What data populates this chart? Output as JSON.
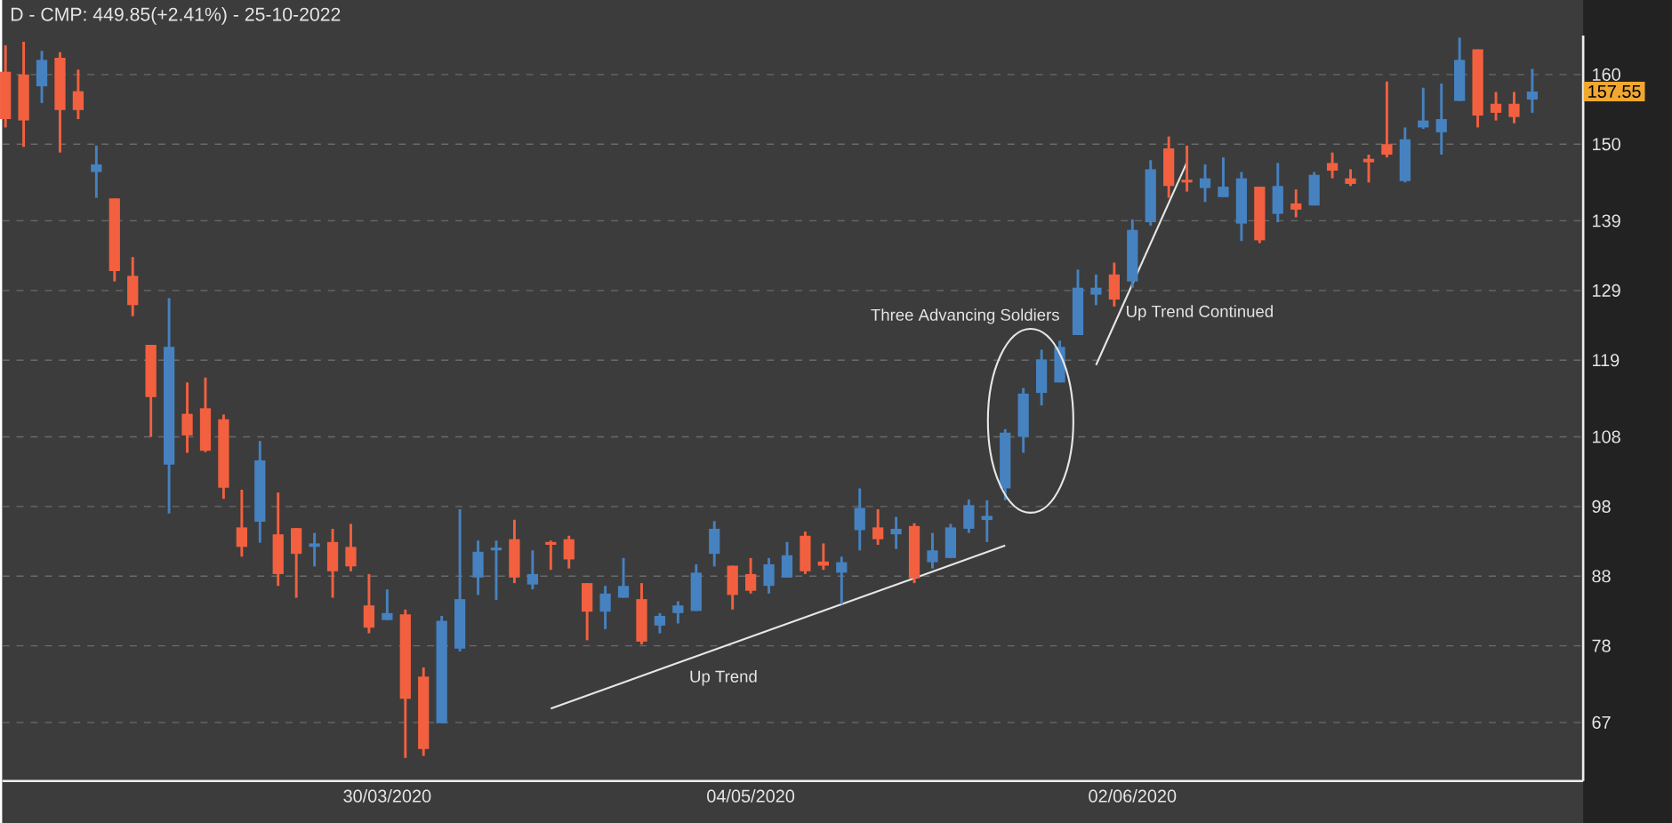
{
  "chart_data": {
    "type": "candlestick",
    "title": "D - CMP: 449.85(+2.41%) - 25-10-2022",
    "categories": [
      null,
      null,
      null,
      null,
      null,
      null,
      null,
      null,
      null,
      null,
      null,
      null,
      null,
      null,
      null,
      null,
      null,
      null,
      null,
      null,
      null,
      "30/03/2020",
      null,
      null,
      null,
      null,
      null,
      null,
      null,
      null,
      null,
      null,
      null,
      null,
      null,
      null,
      null,
      null,
      null,
      null,
      null,
      "04/05/2020",
      null,
      null,
      null,
      null,
      null,
      null,
      null,
      null,
      null,
      null,
      null,
      null,
      null,
      null,
      null,
      null,
      null,
      null,
      null,
      null,
      "02/06/2020",
      null,
      null,
      null,
      null,
      null,
      null,
      null,
      null,
      null,
      null,
      null,
      null,
      null,
      null,
      null,
      null,
      null,
      null,
      null,
      null,
      null,
      null
    ],
    "ohlc": [
      [
        160.4,
        164.2,
        152.4,
        153.6
      ],
      [
        160.0,
        164.7,
        149.6,
        153.4
      ],
      [
        158.3,
        163.4,
        155.9,
        162.1
      ],
      [
        162.4,
        163.2,
        148.8,
        154.9
      ],
      [
        157.6,
        160.7,
        153.6,
        154.9
      ],
      [
        146.0,
        149.8,
        142.3,
        147.1
      ],
      [
        142.2,
        142.2,
        130.3,
        131.8
      ],
      [
        131.1,
        133.8,
        125.3,
        126.9
      ],
      [
        121.2,
        121.2,
        108.0,
        113.7
      ],
      [
        104.0,
        127.9,
        97.0,
        120.9
      ],
      [
        111.3,
        115.8,
        105.7,
        108.2
      ],
      [
        112.1,
        116.5,
        105.8,
        106.0
      ],
      [
        110.5,
        111.2,
        99.1,
        100.7
      ],
      [
        95.0,
        100.4,
        90.8,
        92.2
      ],
      [
        95.8,
        107.4,
        92.8,
        104.6
      ],
      [
        94.0,
        100.0,
        86.6,
        88.3
      ],
      [
        94.9,
        94.9,
        84.9,
        91.2
      ],
      [
        92.2,
        94.2,
        89.4,
        92.7
      ],
      [
        92.9,
        94.8,
        84.9,
        88.7
      ],
      [
        92.2,
        95.5,
        88.7,
        89.4
      ],
      [
        83.8,
        88.3,
        79.8,
        80.6
      ],
      [
        81.7,
        86.1,
        81.7,
        82.7
      ],
      [
        82.5,
        83.2,
        61.9,
        70.4
      ],
      [
        73.6,
        74.9,
        62.2,
        63.2
      ],
      [
        66.9,
        82.3,
        66.9,
        81.6
      ],
      [
        77.6,
        97.6,
        77.2,
        84.7
      ],
      [
        87.8,
        93.1,
        85.3,
        91.5
      ],
      [
        91.7,
        93.1,
        84.6,
        92.1
      ],
      [
        93.3,
        96.1,
        87.0,
        87.8
      ],
      [
        86.8,
        91.7,
        86.1,
        88.3
      ],
      [
        92.9,
        93.1,
        88.9,
        92.5
      ],
      [
        93.3,
        93.8,
        89.1,
        90.4
      ],
      [
        87.0,
        87.0,
        78.8,
        82.9
      ],
      [
        82.9,
        86.6,
        80.4,
        85.5
      ],
      [
        84.9,
        90.6,
        84.9,
        86.6
      ],
      [
        84.7,
        87.0,
        78.2,
        78.6
      ],
      [
        80.9,
        82.7,
        79.8,
        82.3
      ],
      [
        82.7,
        84.4,
        81.2,
        83.8
      ],
      [
        83.0,
        89.7,
        83.0,
        88.5
      ],
      [
        91.2,
        95.9,
        89.4,
        94.8
      ],
      [
        89.5,
        89.5,
        83.2,
        85.3
      ],
      [
        88.3,
        90.6,
        85.5,
        85.9
      ],
      [
        86.6,
        90.6,
        85.5,
        89.7
      ],
      [
        87.8,
        92.9,
        87.8,
        91.0
      ],
      [
        93.8,
        94.4,
        88.3,
        88.7
      ],
      [
        90.1,
        92.7,
        88.9,
        89.5
      ],
      [
        88.5,
        90.8,
        84.0,
        90.0
      ],
      [
        94.6,
        100.6,
        91.7,
        97.8
      ],
      [
        95.0,
        97.6,
        92.5,
        93.3
      ],
      [
        94.0,
        96.5,
        91.9,
        94.8
      ],
      [
        95.2,
        95.6,
        87.0,
        87.7
      ],
      [
        90.0,
        94.2,
        89.1,
        91.7
      ],
      [
        90.6,
        95.5,
        90.6,
        95.0
      ],
      [
        94.8,
        99.0,
        94.2,
        98.2
      ],
      [
        96.2,
        98.9,
        92.9,
        96.5
      ],
      [
        100.6,
        109.1,
        98.9,
        108.6
      ],
      [
        108.0,
        115.0,
        105.7,
        114.2
      ],
      [
        114.3,
        120.5,
        112.5,
        119.1
      ],
      [
        115.8,
        121.8,
        115.8,
        120.9
      ],
      [
        122.6,
        132.0,
        122.6,
        129.4
      ],
      [
        128.4,
        131.3,
        126.9,
        129.4
      ],
      [
        131.3,
        133.0,
        126.7,
        127.7
      ],
      [
        130.3,
        139.2,
        129.4,
        137.7
      ],
      [
        138.8,
        147.7,
        138.3,
        146.4
      ],
      [
        149.4,
        151.1,
        142.3,
        144.0
      ],
      [
        144.9,
        149.8,
        143.2,
        144.5
      ],
      [
        143.7,
        147.1,
        141.7,
        145.1
      ],
      [
        142.4,
        148.1,
        142.4,
        143.9
      ],
      [
        138.6,
        146.0,
        136.1,
        145.1
      ],
      [
        143.9,
        143.9,
        135.8,
        136.2
      ],
      [
        140.0,
        147.3,
        138.8,
        144.0
      ],
      [
        141.5,
        143.5,
        139.5,
        140.6
      ],
      [
        141.2,
        146.0,
        141.2,
        145.6
      ],
      [
        147.3,
        148.8,
        145.1,
        146.2
      ],
      [
        145.1,
        146.4,
        144.0,
        144.3
      ],
      [
        147.9,
        148.5,
        144.5,
        147.4
      ],
      [
        150.0,
        159.0,
        148.1,
        148.5
      ],
      [
        144.7,
        152.4,
        144.5,
        150.7
      ],
      [
        152.4,
        158.1,
        152.2,
        153.4
      ],
      [
        151.7,
        158.7,
        148.5,
        153.6
      ],
      [
        156.2,
        165.3,
        156.2,
        162.1
      ],
      [
        163.6,
        163.6,
        152.4,
        154.1
      ],
      [
        155.8,
        157.5,
        153.4,
        154.5
      ],
      [
        155.8,
        157.5,
        153.0,
        153.9
      ],
      [
        156.4,
        160.8,
        154.5,
        157.55
      ]
    ],
    "colors": [
      "#f3603f",
      "#f3603f",
      "#4682c0",
      "#f3603f",
      "#f3603f",
      "#4682c0",
      "#f3603f",
      "#f3603f",
      "#f3603f",
      "#4682c0",
      "#f3603f",
      "#f3603f",
      "#f3603f",
      "#f3603f",
      "#4682c0",
      "#f3603f",
      "#f3603f",
      "#4682c0",
      "#f3603f",
      "#f3603f",
      "#f3603f",
      "#4682c0",
      "#f3603f",
      "#f3603f",
      "#4682c0",
      "#4682c0",
      "#4682c0",
      "#4682c0",
      "#f3603f",
      "#4682c0",
      "#f3603f",
      "#f3603f",
      "#f3603f",
      "#4682c0",
      "#4682c0",
      "#f3603f",
      "#4682c0",
      "#4682c0",
      "#4682c0",
      "#4682c0",
      "#f3603f",
      "#f3603f",
      "#4682c0",
      "#4682c0",
      "#f3603f",
      "#f3603f",
      "#4682c0",
      "#4682c0",
      "#f3603f",
      "#4682c0",
      "#f3603f",
      "#4682c0",
      "#4682c0",
      "#4682c0",
      "#4682c0",
      "#4682c0",
      "#4682c0",
      "#4682c0",
      "#4682c0",
      "#4682c0",
      "#4682c0",
      "#f3603f",
      "#4682c0",
      "#4682c0",
      "#f3603f",
      "#f3603f",
      "#4682c0",
      "#4682c0",
      "#4682c0",
      "#f3603f",
      "#4682c0",
      "#f3603f",
      "#4682c0",
      "#f3603f",
      "#f3603f",
      "#f3603f",
      "#f3603f",
      "#4682c0",
      "#4682c0",
      "#4682c0",
      "#4682c0",
      "#f3603f",
      "#f3603f",
      "#f3603f",
      "#4682c0"
    ],
    "series": [
      {
        "type": "line",
        "color": "#e6e6e6",
        "values": [
          null,
          null,
          null,
          null,
          null,
          null,
          null,
          null,
          null,
          null,
          null,
          null,
          null,
          null,
          null,
          null,
          null,
          null,
          null,
          null,
          null,
          null,
          null,
          null,
          null,
          null,
          null,
          null,
          null,
          null,
          69.0,
          null,
          null,
          null,
          null,
          null,
          null,
          null,
          null,
          null,
          null,
          null,
          null,
          null,
          null,
          null,
          null,
          null,
          null,
          null,
          null,
          null,
          null,
          null,
          null,
          92.4,
          null,
          null,
          null,
          null,
          null,
          null,
          null,
          null,
          null,
          null,
          null,
          null,
          null,
          null,
          null,
          null,
          null,
          null,
          null,
          null,
          null,
          null,
          null,
          null,
          null,
          null,
          null,
          null,
          null
        ]
      },
      {
        "type": "line",
        "color": "#e6e6e6",
        "values": [
          null,
          null,
          null,
          null,
          null,
          null,
          null,
          null,
          null,
          null,
          null,
          null,
          null,
          null,
          null,
          null,
          null,
          null,
          null,
          null,
          null,
          null,
          null,
          null,
          null,
          null,
          null,
          null,
          null,
          null,
          null,
          null,
          null,
          null,
          null,
          null,
          null,
          null,
          null,
          null,
          null,
          null,
          null,
          null,
          null,
          null,
          null,
          null,
          null,
          null,
          null,
          null,
          null,
          null,
          null,
          null,
          null,
          null,
          null,
          null,
          118.3,
          null,
          null,
          null,
          null,
          147.4,
          null,
          null,
          null,
          null,
          null,
          null,
          null,
          null,
          null,
          null,
          null,
          null,
          null,
          null,
          null,
          null,
          null,
          null,
          null
        ]
      }
    ],
    "ylim": [
      58.6,
      165.6
    ],
    "yticks": [
      67,
      78,
      88,
      98,
      108,
      119,
      129,
      139,
      150,
      160
    ],
    "grid": "y",
    "annotations": [
      "Three Advancing Soldiers",
      "Up Trend Continued",
      "Up Trend",
      "157.55"
    ]
  }
}
